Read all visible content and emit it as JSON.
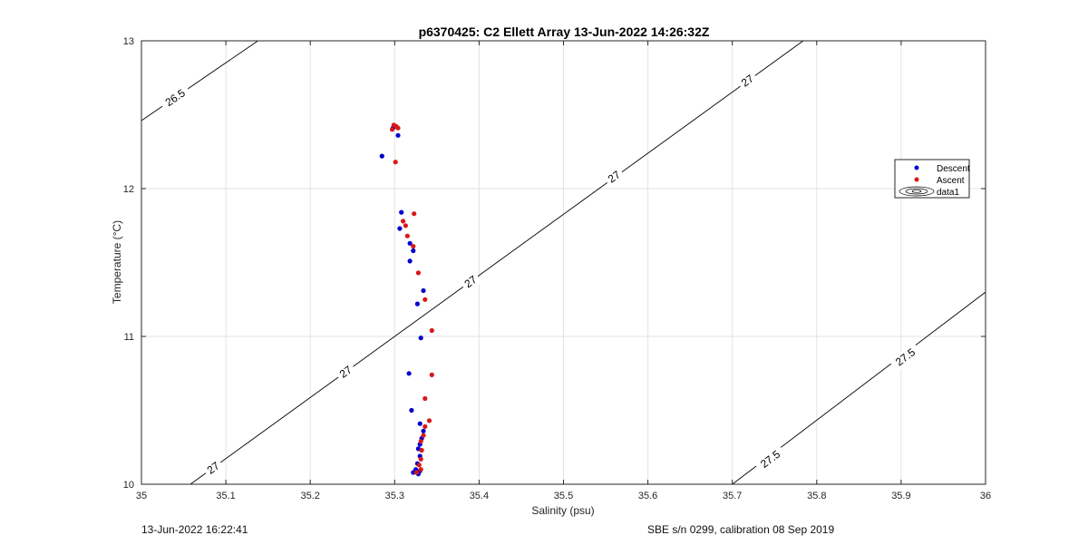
{
  "chart_data": {
    "type": "scatter",
    "title": "p6370425: C2 Ellett Array 13-Jun-2022 14:26:32Z",
    "xlabel": "Salinity (psu)",
    "ylabel": "Temperature (°C)",
    "xlim": [
      35,
      36
    ],
    "ylim": [
      10,
      13
    ],
    "xticks": [
      "35",
      "35.1",
      "35.2",
      "35.3",
      "35.4",
      "35.5",
      "35.6",
      "35.7",
      "35.8",
      "35.9",
      "36"
    ],
    "yticks": [
      "10",
      "11",
      "12",
      "13"
    ],
    "grid": true,
    "legend_position": "right",
    "legend": [
      "Descent",
      "Ascent",
      "data1"
    ],
    "contours": [
      {
        "label": "26.5",
        "points": [
          [
            35.0,
            12.46
          ],
          [
            35.138,
            13.0
          ]
        ],
        "label_at": [
          35.04,
          12.615
        ]
      },
      {
        "label": "27",
        "points": [
          [
            35.058,
            10.0
          ],
          [
            35.784,
            13.0
          ]
        ],
        "label_at": [
          35.085,
          10.11
        ]
      },
      {
        "label": "27",
        "points": [
          [
            35.058,
            10.0
          ],
          [
            35.784,
            13.0
          ]
        ],
        "label_at": [
          35.242,
          10.76
        ]
      },
      {
        "label": "27",
        "points": [
          [
            35.058,
            10.0
          ],
          [
            35.784,
            13.0
          ]
        ],
        "label_at": [
          35.39,
          11.37
        ]
      },
      {
        "label": "27",
        "points": [
          [
            35.058,
            10.0
          ],
          [
            35.784,
            13.0
          ]
        ],
        "label_at": [
          35.56,
          12.08
        ]
      },
      {
        "label": "27",
        "points": [
          [
            35.058,
            10.0
          ],
          [
            35.784,
            13.0
          ]
        ],
        "label_at": [
          35.718,
          12.73
        ]
      },
      {
        "label": "27.5",
        "points": [
          [
            35.7,
            10.0
          ],
          [
            36.0,
            11.3
          ]
        ],
        "label_at": [
          35.745,
          10.17
        ]
      },
      {
        "label": "27.5",
        "points": [
          [
            35.7,
            10.0
          ],
          [
            36.0,
            11.3
          ]
        ],
        "label_at": [
          35.905,
          10.86
        ]
      }
    ],
    "series": [
      {
        "name": "Descent",
        "color": "#0000cc",
        "points": [
          [
            35.304,
            12.36
          ],
          [
            35.3,
            12.42
          ],
          [
            35.298,
            12.41
          ],
          [
            35.285,
            12.22
          ],
          [
            35.308,
            11.84
          ],
          [
            35.306,
            11.73
          ],
          [
            35.318,
            11.63
          ],
          [
            35.322,
            11.58
          ],
          [
            35.318,
            11.51
          ],
          [
            35.334,
            11.31
          ],
          [
            35.327,
            11.22
          ],
          [
            35.331,
            10.99
          ],
          [
            35.317,
            10.75
          ],
          [
            35.32,
            10.5
          ],
          [
            35.33,
            10.41
          ],
          [
            35.334,
            10.36
          ],
          [
            35.332,
            10.31
          ],
          [
            35.33,
            10.27
          ],
          [
            35.328,
            10.24
          ],
          [
            35.33,
            10.19
          ],
          [
            35.327,
            10.14
          ],
          [
            35.325,
            10.1
          ],
          [
            35.33,
            10.09
          ],
          [
            35.328,
            10.07
          ],
          [
            35.322,
            10.08
          ]
        ]
      },
      {
        "name": "Ascent",
        "color": "#d81818",
        "points": [
          [
            35.302,
            12.42
          ],
          [
            35.297,
            12.4
          ],
          [
            35.299,
            12.43
          ],
          [
            35.304,
            12.41
          ],
          [
            35.301,
            12.18
          ],
          [
            35.323,
            11.83
          ],
          [
            35.31,
            11.78
          ],
          [
            35.313,
            11.75
          ],
          [
            35.315,
            11.68
          ],
          [
            35.322,
            11.61
          ],
          [
            35.328,
            11.43
          ],
          [
            35.336,
            11.25
          ],
          [
            35.344,
            11.04
          ],
          [
            35.344,
            10.74
          ],
          [
            35.336,
            10.58
          ],
          [
            35.341,
            10.43
          ],
          [
            35.336,
            10.39
          ],
          [
            35.334,
            10.33
          ],
          [
            35.331,
            10.29
          ],
          [
            35.332,
            10.23
          ],
          [
            35.331,
            10.17
          ],
          [
            35.329,
            10.13
          ],
          [
            35.331,
            10.1
          ],
          [
            35.326,
            10.08
          ]
        ]
      }
    ]
  },
  "footer": {
    "left": "13-Jun-2022 16:22:41",
    "right": "SBE s/n 0299, calibration 08 Sep 2019"
  }
}
